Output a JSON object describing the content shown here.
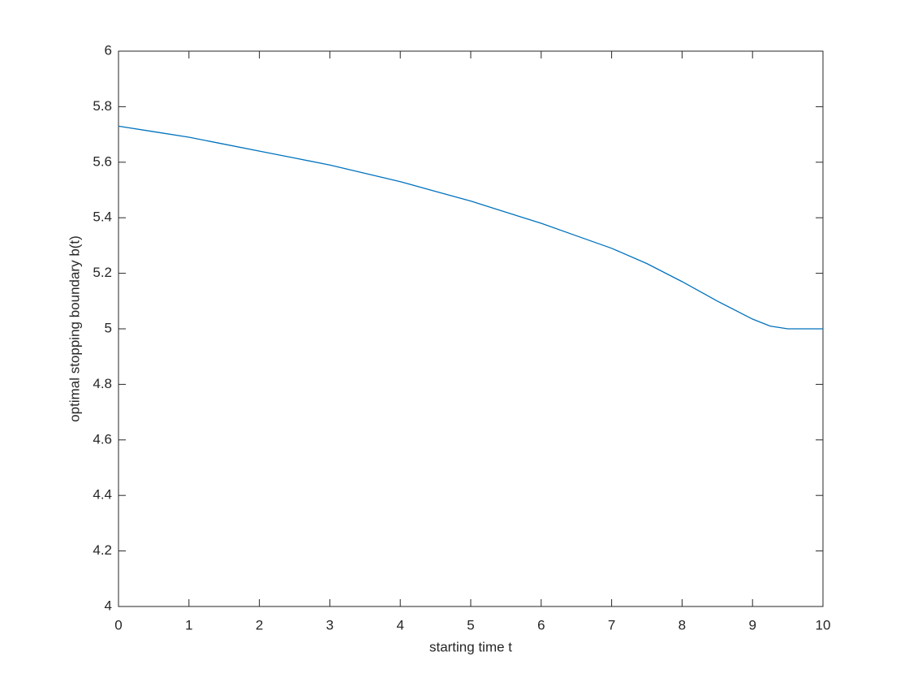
{
  "chart_data": {
    "type": "line",
    "xlabel": "starting time t",
    "ylabel": "optimal stopping boundary b(t)",
    "x": [
      0,
      0.5,
      1,
      1.5,
      2,
      2.5,
      3,
      3.5,
      4,
      4.5,
      5,
      5.5,
      6,
      6.5,
      7,
      7.5,
      8,
      8.5,
      9,
      9.25,
      9.5,
      10
    ],
    "series": [
      {
        "color": "#0072bd",
        "values": [
          5.73,
          5.71,
          5.69,
          5.665,
          5.64,
          5.615,
          5.59,
          5.56,
          5.53,
          5.495,
          5.46,
          5.42,
          5.38,
          5.335,
          5.29,
          5.235,
          5.17,
          5.1,
          5.035,
          5.01,
          5.0,
          5.0
        ]
      }
    ],
    "xlim": [
      0,
      10
    ],
    "xticks": [
      0,
      1,
      2,
      3,
      4,
      5,
      6,
      7,
      8,
      9,
      10
    ],
    "ylim": [
      4,
      6
    ],
    "yticks": [
      4,
      {
        "value": 4.2,
        "label": "4.2"
      },
      {
        "value": 4.4,
        "label": "4.4"
      },
      {
        "value": 4.6,
        "label": "4.6"
      },
      {
        "value": 4.8,
        "label": "4.8"
      },
      5,
      {
        "value": 5.2,
        "label": "5.2"
      },
      {
        "value": 5.4,
        "label": "5.4"
      },
      {
        "value": 5.6,
        "label": "5.6"
      },
      {
        "value": 5.8,
        "label": "5.8"
      },
      6
    ],
    "box": true
  }
}
